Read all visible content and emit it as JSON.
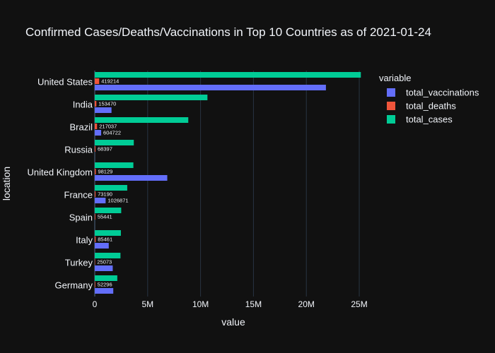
{
  "colors": {
    "background": "#111111",
    "grid": "#283442",
    "text": "#f2f5fa",
    "total_vaccinations": "#636efa",
    "total_deaths": "#EF553B",
    "total_cases": "#00cc96"
  },
  "chart_data": {
    "type": "bar",
    "orientation": "horizontal",
    "barmode": "group",
    "title": "Confirmed Cases/Deaths/Vaccinations in Top 10 Countries as of 2021-01-24",
    "xlabel": "value",
    "ylabel": "location",
    "xlim": [
      0,
      25800000
    ],
    "xticks": [
      {
        "value": 0,
        "label": "0"
      },
      {
        "value": 5000000,
        "label": "5M"
      },
      {
        "value": 10000000,
        "label": "10M"
      },
      {
        "value": 15000000,
        "label": "15M"
      },
      {
        "value": 20000000,
        "label": "20M"
      },
      {
        "value": 25000000,
        "label": "25M"
      }
    ],
    "grid": true,
    "legend": {
      "title": "variable",
      "position": "right"
    },
    "categories": [
      "United States",
      "India",
      "Brazil",
      "Russia",
      "United Kingdom",
      "France",
      "Spain",
      "Italy",
      "Turkey",
      "Germany"
    ],
    "series": [
      {
        "name": "total_vaccinations",
        "values": [
          21850000,
          1582201,
          604722,
          null,
          6853327,
          1026871,
          null,
          1323000,
          1700000,
          1750000
        ],
        "labels": [
          "",
          "",
          "604722",
          "",
          "",
          "1026871",
          "",
          "",
          "",
          ""
        ]
      },
      {
        "name": "total_deaths",
        "values": [
          419214,
          153470,
          217037,
          68397,
          98129,
          73190,
          55441,
          85461,
          25073,
          52296
        ],
        "labels": [
          "419214",
          "153470",
          "217037",
          "68397",
          "98129",
          "73190",
          "55441",
          "85461",
          "25073",
          "52296"
        ]
      },
      {
        "name": "total_cases",
        "values": [
          25150000,
          10650000,
          8840000,
          3690000,
          3650000,
          3070000,
          2500000,
          2470000,
          2430000,
          2130000
        ],
        "labels": [
          "",
          "",
          "",
          "",
          "",
          "",
          "",
          "",
          "",
          ""
        ]
      }
    ]
  }
}
